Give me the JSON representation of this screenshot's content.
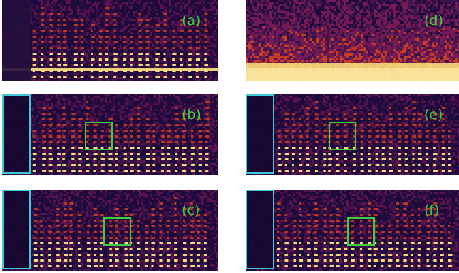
{
  "panels": [
    {
      "id": "a",
      "label": "(a)",
      "style": "clean",
      "cyan_box": false,
      "green_box": false
    },
    {
      "id": "b",
      "label": "(b)",
      "style": "harmonic",
      "cyan_box": true,
      "green_box": true
    },
    {
      "id": "c",
      "label": "(c)",
      "style": "dense",
      "cyan_box": true,
      "green_box": true
    },
    {
      "id": "d",
      "label": "(d)",
      "style": "noisy",
      "cyan_box": false,
      "green_box": false
    },
    {
      "id": "e",
      "label": "(e)",
      "style": "harmonic",
      "cyan_box": true,
      "green_box": true
    },
    {
      "id": "f",
      "label": "(f)",
      "style": "dense",
      "cyan_box": true,
      "green_box": true
    }
  ],
  "colors": {
    "background": "#1e0a3c",
    "mid": "#8a1e5a",
    "hot": "#e8481e",
    "bright": "#ffe680",
    "label": "#3ecf3e",
    "cyan_box": "#3ec8d8",
    "green_box": "#3ecf3e"
  }
}
